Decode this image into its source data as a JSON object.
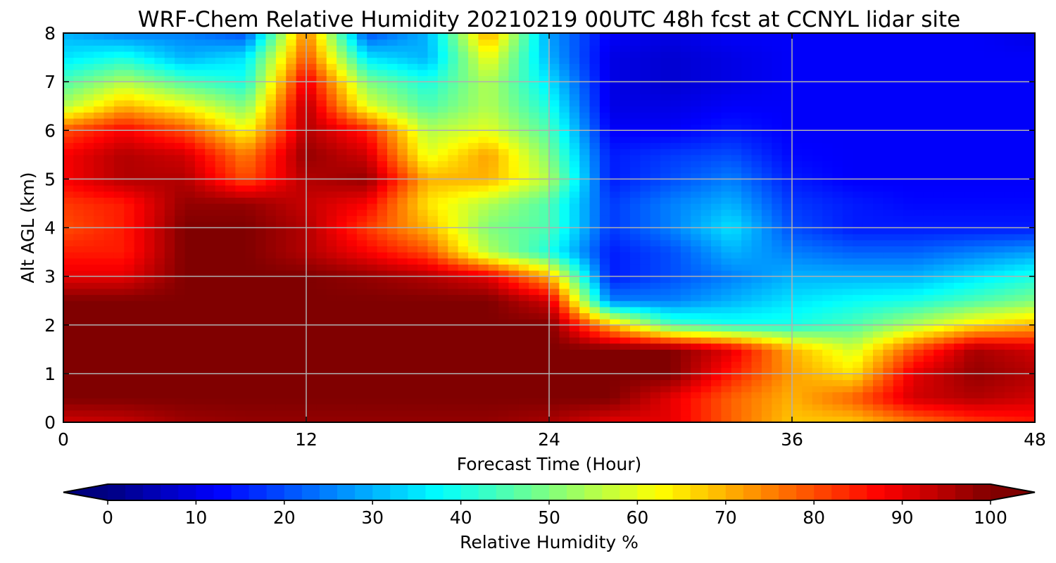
{
  "chart_data": {
    "type": "heatmap",
    "title": "WRF-Chem Relative Humidity 20210219 00UTC 48h fcst at CCNYL lidar site",
    "xlabel": "Forecast Time (Hour)",
    "ylabel": "Alt AGL (km)",
    "xlim": [
      0,
      48
    ],
    "ylim": [
      0,
      8
    ],
    "xticks": [
      "0",
      "12",
      "24",
      "36",
      "48"
    ],
    "yticks": [
      "0",
      "1",
      "2",
      "3",
      "4",
      "5",
      "6",
      "7",
      "8"
    ],
    "grid": true,
    "colormap": "jet",
    "colorbar": {
      "label": "Relative Humidity %",
      "range": [
        0,
        100
      ],
      "ticks": [
        "0",
        "10",
        "20",
        "30",
        "40",
        "50",
        "60",
        "70",
        "80",
        "90",
        "100"
      ],
      "extend": "both",
      "placement": "bottom"
    },
    "x": [
      0,
      3,
      6,
      9,
      12,
      15,
      18,
      21,
      24,
      27,
      30,
      33,
      36,
      39,
      42,
      45,
      48
    ],
    "y": [
      0,
      0.5,
      1,
      1.5,
      2,
      2.5,
      3,
      3.5,
      4,
      4.5,
      5,
      5.5,
      6,
      6.5,
      7,
      7.5,
      8
    ],
    "values": [
      [
        92,
        93,
        97,
        98,
        98,
        98,
        98,
        98,
        96,
        90,
        90,
        78,
        68,
        68,
        76,
        82,
        85
      ],
      [
        100,
        100,
        100,
        100,
        100,
        100,
        100,
        100,
        100,
        100,
        90,
        78,
        70,
        78,
        92,
        95,
        92
      ],
      [
        100,
        100,
        100,
        100,
        100,
        100,
        100,
        100,
        100,
        100,
        100,
        85,
        72,
        65,
        90,
        98,
        95
      ],
      [
        100,
        100,
        100,
        100,
        100,
        100,
        100,
        100,
        100,
        100,
        100,
        90,
        70,
        58,
        80,
        96,
        92
      ],
      [
        100,
        100,
        100,
        100,
        100,
        100,
        100,
        100,
        100,
        70,
        45,
        40,
        40,
        45,
        55,
        65,
        70
      ],
      [
        100,
        100,
        100,
        100,
        100,
        100,
        100,
        100,
        92,
        25,
        25,
        30,
        35,
        38,
        40,
        45,
        50
      ],
      [
        90,
        90,
        100,
        100,
        100,
        98,
        95,
        90,
        70,
        15,
        20,
        25,
        30,
        30,
        30,
        35,
        40
      ],
      [
        85,
        85,
        100,
        100,
        95,
        88,
        80,
        55,
        40,
        15,
        20,
        30,
        25,
        22,
        22,
        25,
        28
      ],
      [
        80,
        85,
        100,
        100,
        95,
        82,
        70,
        50,
        45,
        18,
        25,
        35,
        20,
        15,
        15,
        15,
        15
      ],
      [
        82,
        85,
        98,
        98,
        93,
        88,
        65,
        55,
        45,
        18,
        25,
        30,
        18,
        15,
        13,
        13,
        13
      ],
      [
        88,
        95,
        95,
        80,
        95,
        98,
        70,
        70,
        55,
        15,
        20,
        25,
        15,
        12,
        12,
        12,
        12
      ],
      [
        88,
        95,
        92,
        75,
        98,
        92,
        60,
        72,
        50,
        15,
        18,
        20,
        13,
        12,
        12,
        12,
        12
      ],
      [
        80,
        88,
        80,
        62,
        95,
        85,
        55,
        60,
        45,
        12,
        12,
        15,
        12,
        12,
        12,
        12,
        12
      ],
      [
        55,
        70,
        62,
        50,
        95,
        60,
        45,
        55,
        40,
        10,
        10,
        12,
        12,
        12,
        12,
        12,
        12
      ],
      [
        45,
        55,
        45,
        40,
        90,
        50,
        40,
        55,
        35,
        10,
        8,
        10,
        12,
        12,
        12,
        12,
        12
      ],
      [
        35,
        40,
        30,
        35,
        80,
        35,
        30,
        62,
        30,
        10,
        8,
        10,
        12,
        12,
        12,
        12,
        12
      ],
      [
        30,
        25,
        25,
        20,
        75,
        20,
        30,
        72,
        28,
        12,
        10,
        12,
        12,
        12,
        12,
        12,
        10
      ]
    ]
  }
}
